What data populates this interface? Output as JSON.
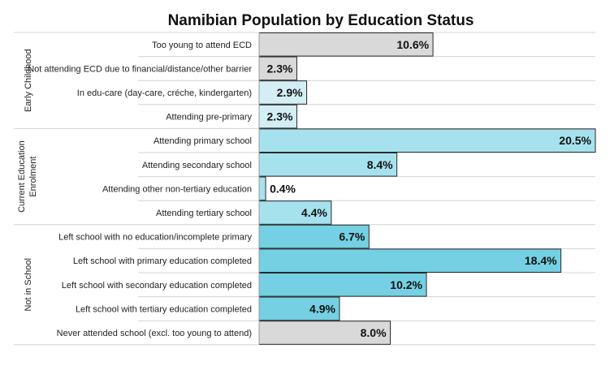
{
  "chart_data": {
    "type": "bar",
    "orientation": "horizontal",
    "title": "Namibian Population by Education Status",
    "value_suffix": "%",
    "xlim": [
      0,
      20.5
    ],
    "groups": [
      {
        "name": "Early Childhood",
        "name_lines": [
          "Early Childhood"
        ],
        "items": [
          {
            "label": "Too young to attend ECD",
            "value": 10.6,
            "value_label": "10.6%",
            "color": "#d9d9d9"
          },
          {
            "label": "Not attending ECD due to financial/distance/other barrier",
            "value": 2.3,
            "value_label": "2.3%",
            "color": "#d9d9d9"
          },
          {
            "label": "In edu-care (day-care, créche, kindergarten)",
            "value": 2.9,
            "value_label": "2.9%",
            "color": "#d3eff5"
          },
          {
            "label": "Attending pre-primary",
            "value": 2.3,
            "value_label": "2.3%",
            "color": "#d3eff5"
          }
        ]
      },
      {
        "name": "Current Education Enrolment",
        "name_lines": [
          "Current Education",
          "Enrolment"
        ],
        "items": [
          {
            "label": "Attending primary school",
            "value": 20.5,
            "value_label": "20.5%",
            "color": "#a6e2ee"
          },
          {
            "label": "Attending secondary school",
            "value": 8.4,
            "value_label": "8.4%",
            "color": "#a6e2ee"
          },
          {
            "label": "Attending other non-tertiary education",
            "value": 0.4,
            "value_label": "0.4%",
            "color": "#a6e2ee"
          },
          {
            "label": "Attending tertiary school",
            "value": 4.4,
            "value_label": "4.4%",
            "color": "#a6e2ee"
          }
        ]
      },
      {
        "name": "Not in School",
        "name_lines": [
          "Not in School"
        ],
        "items": [
          {
            "label": "Left school with no education/incomplete primary",
            "value": 6.7,
            "value_label": "6.7%",
            "color": "#74d0e2"
          },
          {
            "label": "Left school with primary education completed",
            "value": 18.4,
            "value_label": "18.4%",
            "color": "#74d0e2"
          },
          {
            "label": "Left school with secondary education completed",
            "value": 10.2,
            "value_label": "10.2%",
            "color": "#74d0e2"
          },
          {
            "label": "Left school with tertiary education completed",
            "value": 4.9,
            "value_label": "4.9%",
            "color": "#74d0e2"
          },
          {
            "label": "Never attended school (excl. too young to attend)",
            "value": 8.0,
            "value_label": "8.0%",
            "color": "#d9d9d9"
          }
        ]
      }
    ]
  }
}
